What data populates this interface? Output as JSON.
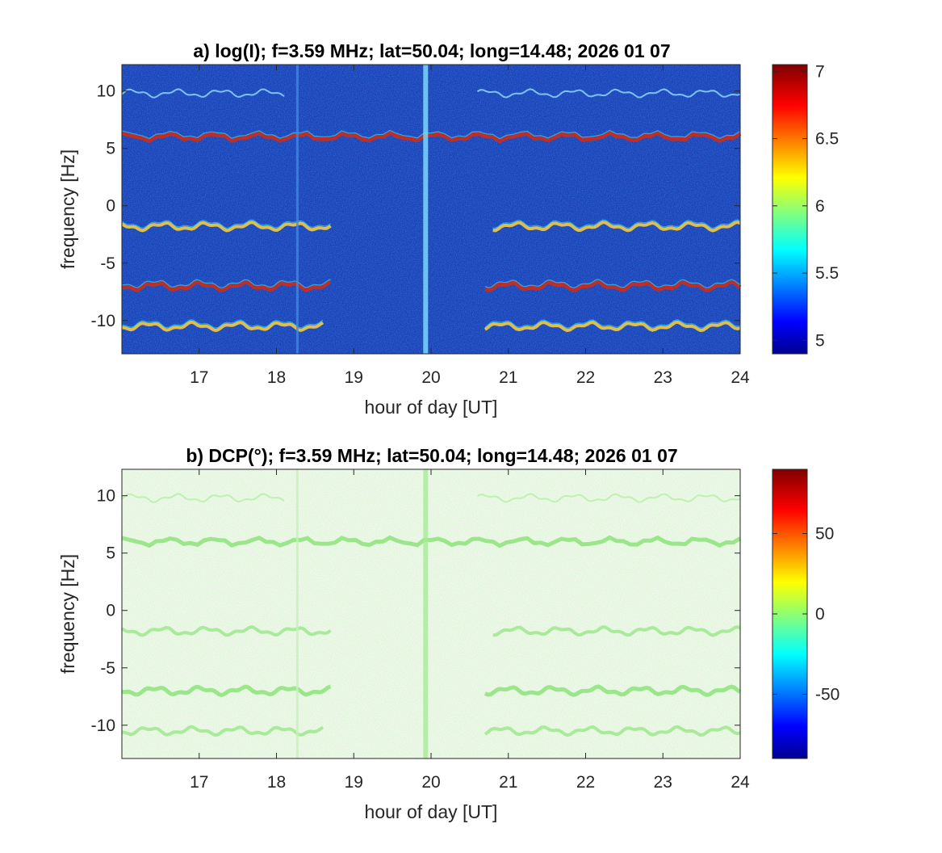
{
  "chart_data": [
    {
      "type": "heatmap",
      "title": "a) log(I); f=3.59 MHz;  lat=50.04; long=14.48; 2026 01 07",
      "xlabel": "hour of day [UT]",
      "ylabel": "frequency [Hz]",
      "xlim": [
        16,
        24
      ],
      "ylim": [
        -12.9,
        12.3
      ],
      "xticks": [
        17,
        18,
        19,
        20,
        21,
        22,
        23,
        24
      ],
      "yticks": [
        -10,
        -5,
        0,
        5,
        10
      ],
      "colormap": "jet",
      "background_color": "#1a3fb3",
      "colorbar": {
        "range": [
          4.9,
          7.05
        ],
        "ticks": [
          5,
          5.5,
          6,
          6.5,
          7
        ]
      },
      "traces": [
        {
          "y": 9.8,
          "x_start": 16.0,
          "x_end": 24.0,
          "strength": "weak",
          "gap": [
            18.1,
            20.6
          ]
        },
        {
          "y": 6.0,
          "x_start": 16.0,
          "x_end": 24.0,
          "strength": "strong",
          "gap": null
        },
        {
          "y": -1.8,
          "x_start": 16.0,
          "x_end": 24.0,
          "strength": "medium",
          "gap": [
            18.7,
            20.8
          ]
        },
        {
          "y": -7.0,
          "x_start": 16.0,
          "x_end": 24.0,
          "strength": "strong",
          "gap": [
            18.7,
            20.7
          ]
        },
        {
          "y": -10.5,
          "x_start": 16.0,
          "x_end": 24.0,
          "strength": "medium",
          "gap": [
            18.6,
            20.7
          ]
        }
      ],
      "vertical_features": [
        {
          "x": 19.93,
          "strength": "strong"
        },
        {
          "x": 18.27,
          "strength": "weak"
        }
      ]
    },
    {
      "type": "heatmap",
      "title": "b) DCP(°); f=3.59 MHz;  lat=50.04; long=14.48; 2026 01 07",
      "xlabel": "hour of day [UT]",
      "ylabel": "frequency [Hz]",
      "xlim": [
        16,
        24
      ],
      "ylim": [
        -12.9,
        12.3
      ],
      "xticks": [
        17,
        18,
        19,
        20,
        21,
        22,
        23,
        24
      ],
      "yticks": [
        -10,
        -5,
        0,
        5,
        10
      ],
      "colormap": "jet",
      "background_color": "#f2f7ee",
      "colorbar": {
        "range": [
          -90,
          90
        ],
        "ticks": [
          -50,
          0,
          50
        ]
      },
      "traces": [
        {
          "y": 9.8,
          "x_start": 16.0,
          "x_end": 24.0,
          "strength": "weak",
          "gap": [
            18.1,
            20.6
          ]
        },
        {
          "y": 6.0,
          "x_start": 16.0,
          "x_end": 24.0,
          "strength": "strong",
          "gap": null
        },
        {
          "y": -1.8,
          "x_start": 16.0,
          "x_end": 24.0,
          "strength": "medium",
          "gap": [
            18.7,
            20.8
          ]
        },
        {
          "y": -7.0,
          "x_start": 16.0,
          "x_end": 24.0,
          "strength": "strong",
          "gap": [
            18.7,
            20.7
          ]
        },
        {
          "y": -10.5,
          "x_start": 16.0,
          "x_end": 24.0,
          "strength": "medium",
          "gap": [
            18.6,
            20.7
          ]
        }
      ],
      "vertical_features": [
        {
          "x": 19.93,
          "strength": "strong"
        },
        {
          "x": 18.27,
          "strength": "weak"
        }
      ]
    }
  ]
}
